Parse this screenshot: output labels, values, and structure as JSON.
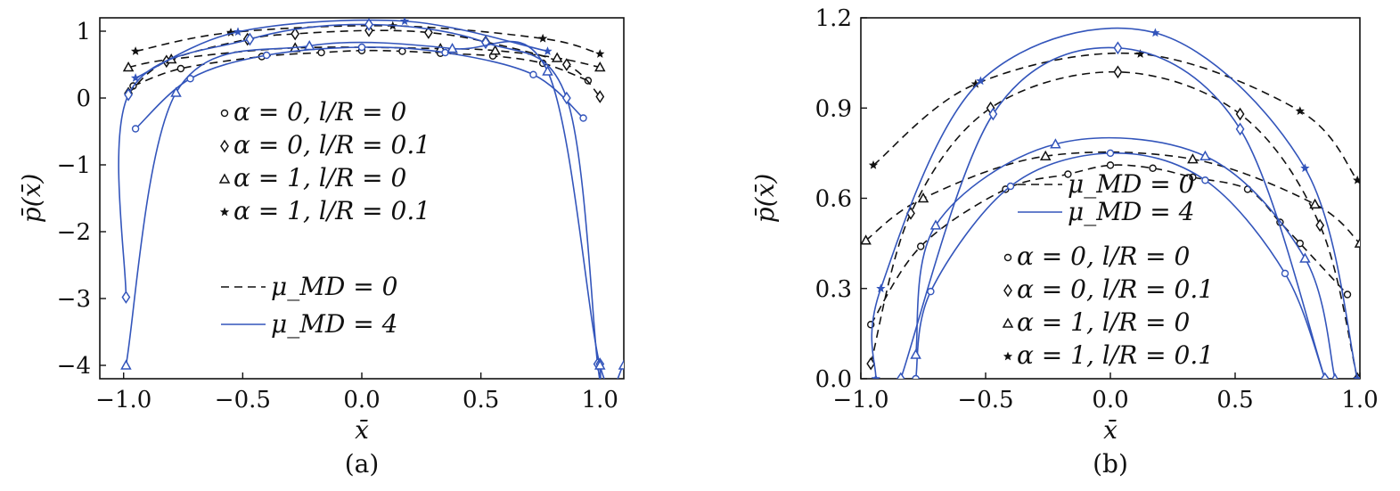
{
  "colors": {
    "mu0": "#111111",
    "mu4": "#3355bb"
  },
  "chart_data": [
    {
      "id": "a",
      "type": "line",
      "sublabel": "(a)",
      "xlabel": "x̄",
      "ylabel": "p̄(x̄)",
      "xlim": [
        -1.1,
        1.1
      ],
      "ylim": [
        -4.2,
        1.2
      ],
      "xticks": [
        -1.0,
        -0.5,
        0.0,
        0.5,
        1.0
      ],
      "xtick_labels": [
        "−1.0",
        "−0.5",
        "0.0",
        "0.5",
        "1.0"
      ],
      "yticks": [
        -4,
        -3,
        -2,
        -1,
        0,
        1
      ],
      "ytick_labels": [
        "−4",
        "−3",
        "−2",
        "−1",
        "0",
        "1"
      ],
      "legend_markers": [
        {
          "marker": "circle",
          "label": "α = 0,  l/R = 0"
        },
        {
          "marker": "diamond",
          "label": "α = 0,  l/R = 0.1"
        },
        {
          "marker": "triangle",
          "label": "α = 1,  l/R = 0"
        },
        {
          "marker": "star",
          "label": "α = 1,  l/R = 0.1"
        }
      ],
      "legend_lines": [
        {
          "style": "dashed",
          "label": "μ_MD = 0"
        },
        {
          "style": "solid",
          "label": "μ_MD = 4"
        }
      ],
      "series": [
        {
          "mu": 0,
          "marker": "circle",
          "x": [
            -0.96,
            -0.76,
            -0.42,
            -0.17,
            0.0,
            0.17,
            0.33,
            0.55,
            0.76,
            0.95
          ],
          "y": [
            0.18,
            0.44,
            0.62,
            0.68,
            0.71,
            0.7,
            0.67,
            0.63,
            0.52,
            0.26
          ]
        },
        {
          "mu": 0,
          "marker": "diamond",
          "x": [
            -0.98,
            -0.82,
            -0.48,
            -0.28,
            0.03,
            0.28,
            0.52,
            0.86,
            1.0
          ],
          "y": [
            0.07,
            0.55,
            0.88,
            0.96,
            1.01,
            0.98,
            0.84,
            0.5,
            0.02
          ]
        },
        {
          "mu": 0,
          "marker": "triangle",
          "x": [
            -0.98,
            -0.8,
            -0.28,
            0.33,
            0.56,
            0.82,
            1.0
          ],
          "y": [
            0.46,
            0.58,
            0.75,
            0.74,
            0.71,
            0.6,
            0.46
          ]
        },
        {
          "mu": 0,
          "marker": "star",
          "x": [
            -0.95,
            -0.55,
            0.13,
            0.76,
            1.0
          ],
          "y": [
            0.7,
            0.98,
            1.08,
            0.89,
            0.66
          ]
        },
        {
          "mu": 4,
          "marker": "circle",
          "x": [
            -0.95,
            -0.72,
            -0.4,
            0.0,
            0.35,
            0.72,
            0.93
          ],
          "y": [
            -0.46,
            0.29,
            0.64,
            0.76,
            0.68,
            0.35,
            -0.3
          ]
        },
        {
          "mu": 4,
          "marker": "diamond",
          "x": [
            -0.99,
            -0.98,
            -0.47,
            0.03,
            0.52,
            0.86,
            0.99,
            1.0
          ],
          "y": [
            -2.98,
            0.05,
            0.88,
            1.1,
            0.83,
            0.0,
            -3.98,
            -3.98
          ]
        },
        {
          "mu": 4,
          "marker": "triangle",
          "x": [
            -0.99,
            -0.78,
            -0.22,
            0.38,
            0.78,
            1.0,
            1.1
          ],
          "y": [
            -4.0,
            0.08,
            0.78,
            0.74,
            0.4,
            -4.0,
            -4.0
          ]
        },
        {
          "mu": 4,
          "marker": "star",
          "x": [
            -0.95,
            -0.52,
            0.18,
            0.78
          ],
          "y": [
            0.3,
            0.99,
            1.15,
            0.7
          ]
        }
      ]
    },
    {
      "id": "b",
      "type": "line",
      "sublabel": "(b)",
      "xlabel": "x̄",
      "ylabel": "p̄(x̄)",
      "xlim": [
        -1.0,
        1.0
      ],
      "ylim": [
        0.0,
        1.2
      ],
      "xticks": [
        -1.0,
        -0.5,
        0.0,
        0.5,
        1.0
      ],
      "xtick_labels": [
        "−1.0",
        "−0.5",
        "0.0",
        "0.5",
        "1.0"
      ],
      "yticks": [
        0.0,
        0.3,
        0.6,
        0.9,
        1.2
      ],
      "ytick_labels": [
        "0.0",
        "0.3",
        "0.6",
        "0.9",
        "1.2"
      ],
      "legend_lines": [
        {
          "style": "dashed",
          "label": "μ_MD = 0"
        },
        {
          "style": "solid",
          "label": "μ_MD = 4"
        }
      ],
      "legend_markers": [
        {
          "marker": "circle",
          "label": "α = 0,  l/R = 0"
        },
        {
          "marker": "diamond",
          "label": "α = 0,  l/R = 0.1"
        },
        {
          "marker": "triangle",
          "label": "α = 1,  l/R = 0"
        },
        {
          "marker": "star",
          "label": "α = 1,  l/R = 0.1"
        }
      ],
      "series": [
        {
          "mu": 0,
          "marker": "circle",
          "x": [
            -0.96,
            -0.76,
            -0.42,
            -0.17,
            0.0,
            0.17,
            0.33,
            0.55,
            0.68,
            0.76,
            0.95
          ],
          "y": [
            0.18,
            0.44,
            0.63,
            0.68,
            0.71,
            0.7,
            0.67,
            0.63,
            0.52,
            0.45,
            0.28
          ]
        },
        {
          "mu": 0,
          "marker": "diamond",
          "x": [
            -0.96,
            -0.8,
            -0.48,
            0.03,
            0.52,
            0.84,
            0.99
          ],
          "y": [
            0.05,
            0.55,
            0.9,
            1.02,
            0.88,
            0.51,
            0.0
          ]
        },
        {
          "mu": 0,
          "marker": "triangle",
          "x": [
            -0.98,
            -0.75,
            -0.26,
            0.33,
            0.82,
            1.0
          ],
          "y": [
            0.46,
            0.6,
            0.74,
            0.73,
            0.58,
            0.45
          ]
        },
        {
          "mu": 0,
          "marker": "star",
          "x": [
            -0.95,
            -0.54,
            0.12,
            0.76,
            0.99
          ],
          "y": [
            0.71,
            0.98,
            1.08,
            0.89,
            0.66
          ]
        },
        {
          "mu": 4,
          "marker": "circle",
          "x": [
            -0.78,
            -0.72,
            -0.4,
            0.0,
            0.38,
            0.7,
            0.86
          ],
          "y": [
            0.0,
            0.29,
            0.64,
            0.75,
            0.66,
            0.35,
            0.0
          ]
        },
        {
          "mu": 4,
          "marker": "diamond",
          "x": [
            -0.84,
            -0.47,
            0.03,
            0.52,
            0.86
          ],
          "y": [
            0.0,
            0.88,
            1.1,
            0.83,
            0.0
          ]
        },
        {
          "mu": 4,
          "marker": "triangle",
          "x": [
            -0.78,
            -0.7,
            -0.22,
            0.38,
            0.78,
            0.9
          ],
          "y": [
            0.08,
            0.51,
            0.78,
            0.74,
            0.4,
            0.0
          ]
        },
        {
          "mu": 4,
          "marker": "star",
          "x": [
            -0.94,
            -0.92,
            -0.52,
            0.18,
            0.78,
            0.99
          ],
          "y": [
            0.0,
            0.3,
            0.99,
            1.15,
            0.7,
            0.0
          ]
        }
      ]
    }
  ]
}
